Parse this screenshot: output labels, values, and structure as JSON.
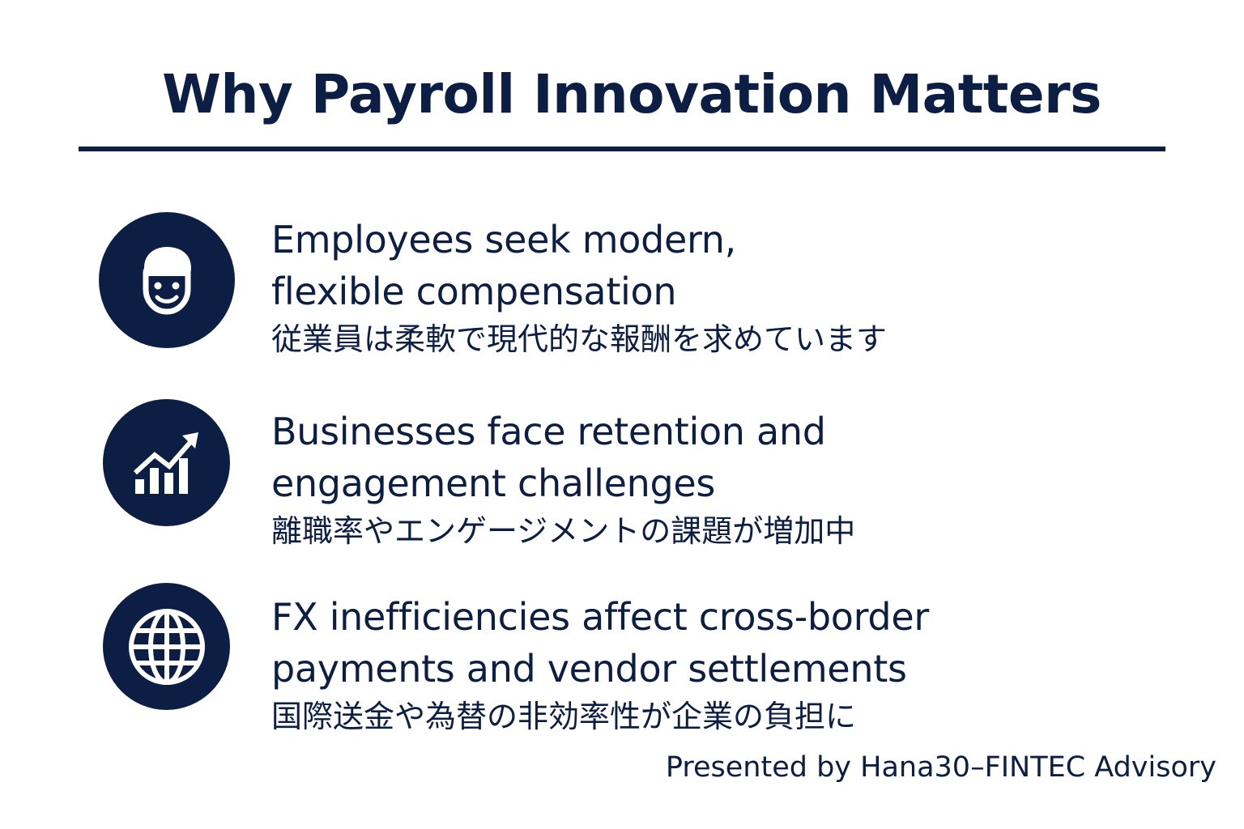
{
  "slide": {
    "title": "Why Payroll Innovation Matters",
    "colors": {
      "primary": "#0d1e45",
      "background": "#ffffff"
    },
    "items": [
      {
        "icon": "person-face-icon",
        "text_en": "Employees seek modern,\nflexible compensation",
        "text_ja": "従業員は柔軟で現代的な報酬を求めています"
      },
      {
        "icon": "growth-chart-icon",
        "text_en": "Businesses face retention and\nengagement challenges",
        "text_ja": "離職率やエンゲージメントの課題が増加中"
      },
      {
        "icon": "globe-icon",
        "text_en": "FX inefficiencies affect cross-border\npayments and vendor settlements",
        "text_ja": "国際送金や為替の非効率性が企業の負担に"
      }
    ],
    "footer": "Presented by Hana30–FINTEC Advisory"
  }
}
